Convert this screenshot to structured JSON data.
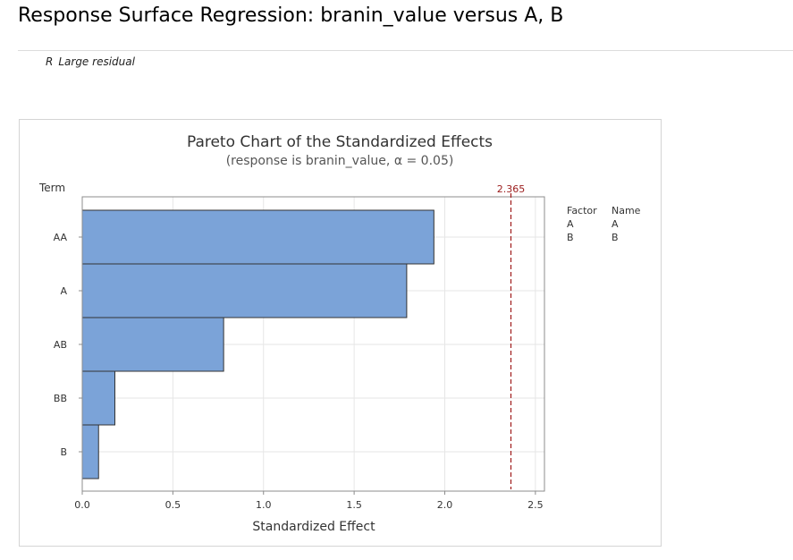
{
  "page": {
    "title": "Response Surface Regression: branin_value versus A, B",
    "footnote_symbol": "R",
    "footnote_text": "Large residual"
  },
  "chart_data": {
    "type": "bar",
    "orientation": "horizontal",
    "title": "Pareto Chart of the Standardized Effects",
    "subtitle": "(response is branin_value, α = 0.05)",
    "xlabel": "Standardized Effect",
    "ylabel": "Term",
    "categories": [
      "AA",
      "A",
      "AB",
      "BB",
      "B"
    ],
    "values": [
      1.94,
      1.79,
      0.78,
      0.18,
      0.09
    ],
    "xlim": [
      0,
      2.55
    ],
    "xticks": [
      0,
      0.5,
      1,
      1.5,
      2,
      2.5
    ],
    "xtick_labels": [
      "0.0",
      "0.5",
      "1.0",
      "1.5",
      "2.0",
      "2.5"
    ],
    "grid": true,
    "bar_color": "#7ba3d8",
    "bar_edge_color": "#333333",
    "reference_line": {
      "value": 2.365,
      "label": "2.365",
      "color": "#a01a1a",
      "style": "dashed"
    },
    "legend": {
      "placement": "right",
      "headers": [
        "Factor",
        "Name"
      ],
      "rows": [
        [
          "A",
          "A"
        ],
        [
          "B",
          "B"
        ]
      ]
    }
  }
}
